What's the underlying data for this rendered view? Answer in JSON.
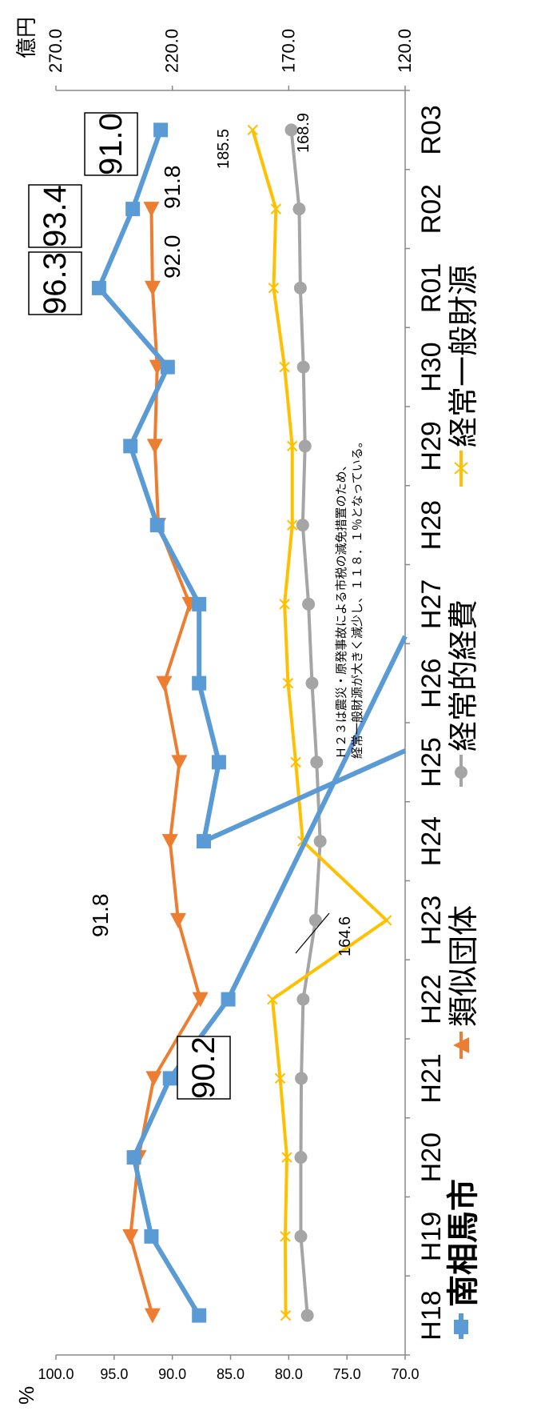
{
  "chart_data": {
    "type": "line",
    "categories": [
      "H18",
      "H19",
      "H20",
      "H21",
      "H22",
      "H23",
      "H24",
      "H25",
      "H26",
      "H27",
      "H28",
      "H29",
      "H30",
      "R01",
      "R02",
      "R03"
    ],
    "left_axis": {
      "unit": "%",
      "ticks": [
        "100.0",
        "95.0",
        "90.0",
        "85.0",
        "80.0",
        "75.0",
        "70.0"
      ],
      "range": [
        70,
        100
      ]
    },
    "right_axis": {
      "unit": "億円",
      "ticks": [
        "270.0",
        "220.0",
        "170.0",
        "120.0"
      ],
      "range": [
        120,
        270
      ]
    },
    "series": [
      {
        "name": "南相馬市",
        "axis": "left",
        "color": "#5b9bd5",
        "marker": "square",
        "values": [
          87.7,
          91.8,
          93.3,
          90.2,
          85.2,
          null,
          87.3,
          86.0,
          87.7,
          87.7,
          91.3,
          93.6,
          90.4,
          96.3,
          93.4,
          91.0
        ]
      },
      {
        "name": "類似団体",
        "axis": "left",
        "color": "#ed7d31",
        "marker": "triangle",
        "values": [
          91.7,
          93.6,
          92.9,
          91.6,
          87.6,
          89.5,
          90.2,
          89.4,
          90.7,
          88.5,
          91.2,
          91.5,
          91.3,
          91.7,
          91.8,
          null
        ]
      },
      {
        "name": "経常的経費",
        "axis": "right",
        "color": "#a5a5a5",
        "marker": "circle",
        "values": [
          162.0,
          164.8,
          164.8,
          164.6,
          163.8,
          158.5,
          156.5,
          158.0,
          160.0,
          161.5,
          164.0,
          163.0,
          163.7,
          165.0,
          165.5,
          168.9
        ]
      },
      {
        "name": "経常一般財源",
        "axis": "right",
        "color": "#ffc000",
        "marker": "x",
        "values": [
          171.3,
          171.5,
          170.8,
          173.7,
          177.0,
          128.0,
          164.0,
          167.0,
          170.3,
          171.8,
          168.5,
          168.5,
          171.8,
          176.5,
          175.5,
          185.5
        ]
      }
    ],
    "data_labels": {
      "nansoma_boxed": [
        "90.2",
        "96.3",
        "93.4",
        "91.0"
      ],
      "ruiji": [
        "91.8",
        "92.0",
        "91.8"
      ],
      "keijo_start": "164.6",
      "keijo_end": "168.9",
      "zaigen_end": "185.5"
    },
    "annotation": [
      "Ｈ２３は震災・原発事故による市税の減免措置のため、",
      "経常一般財源が大きく減少し、１１８．１％となっている。"
    ],
    "grid": false,
    "legend_position": "right"
  }
}
